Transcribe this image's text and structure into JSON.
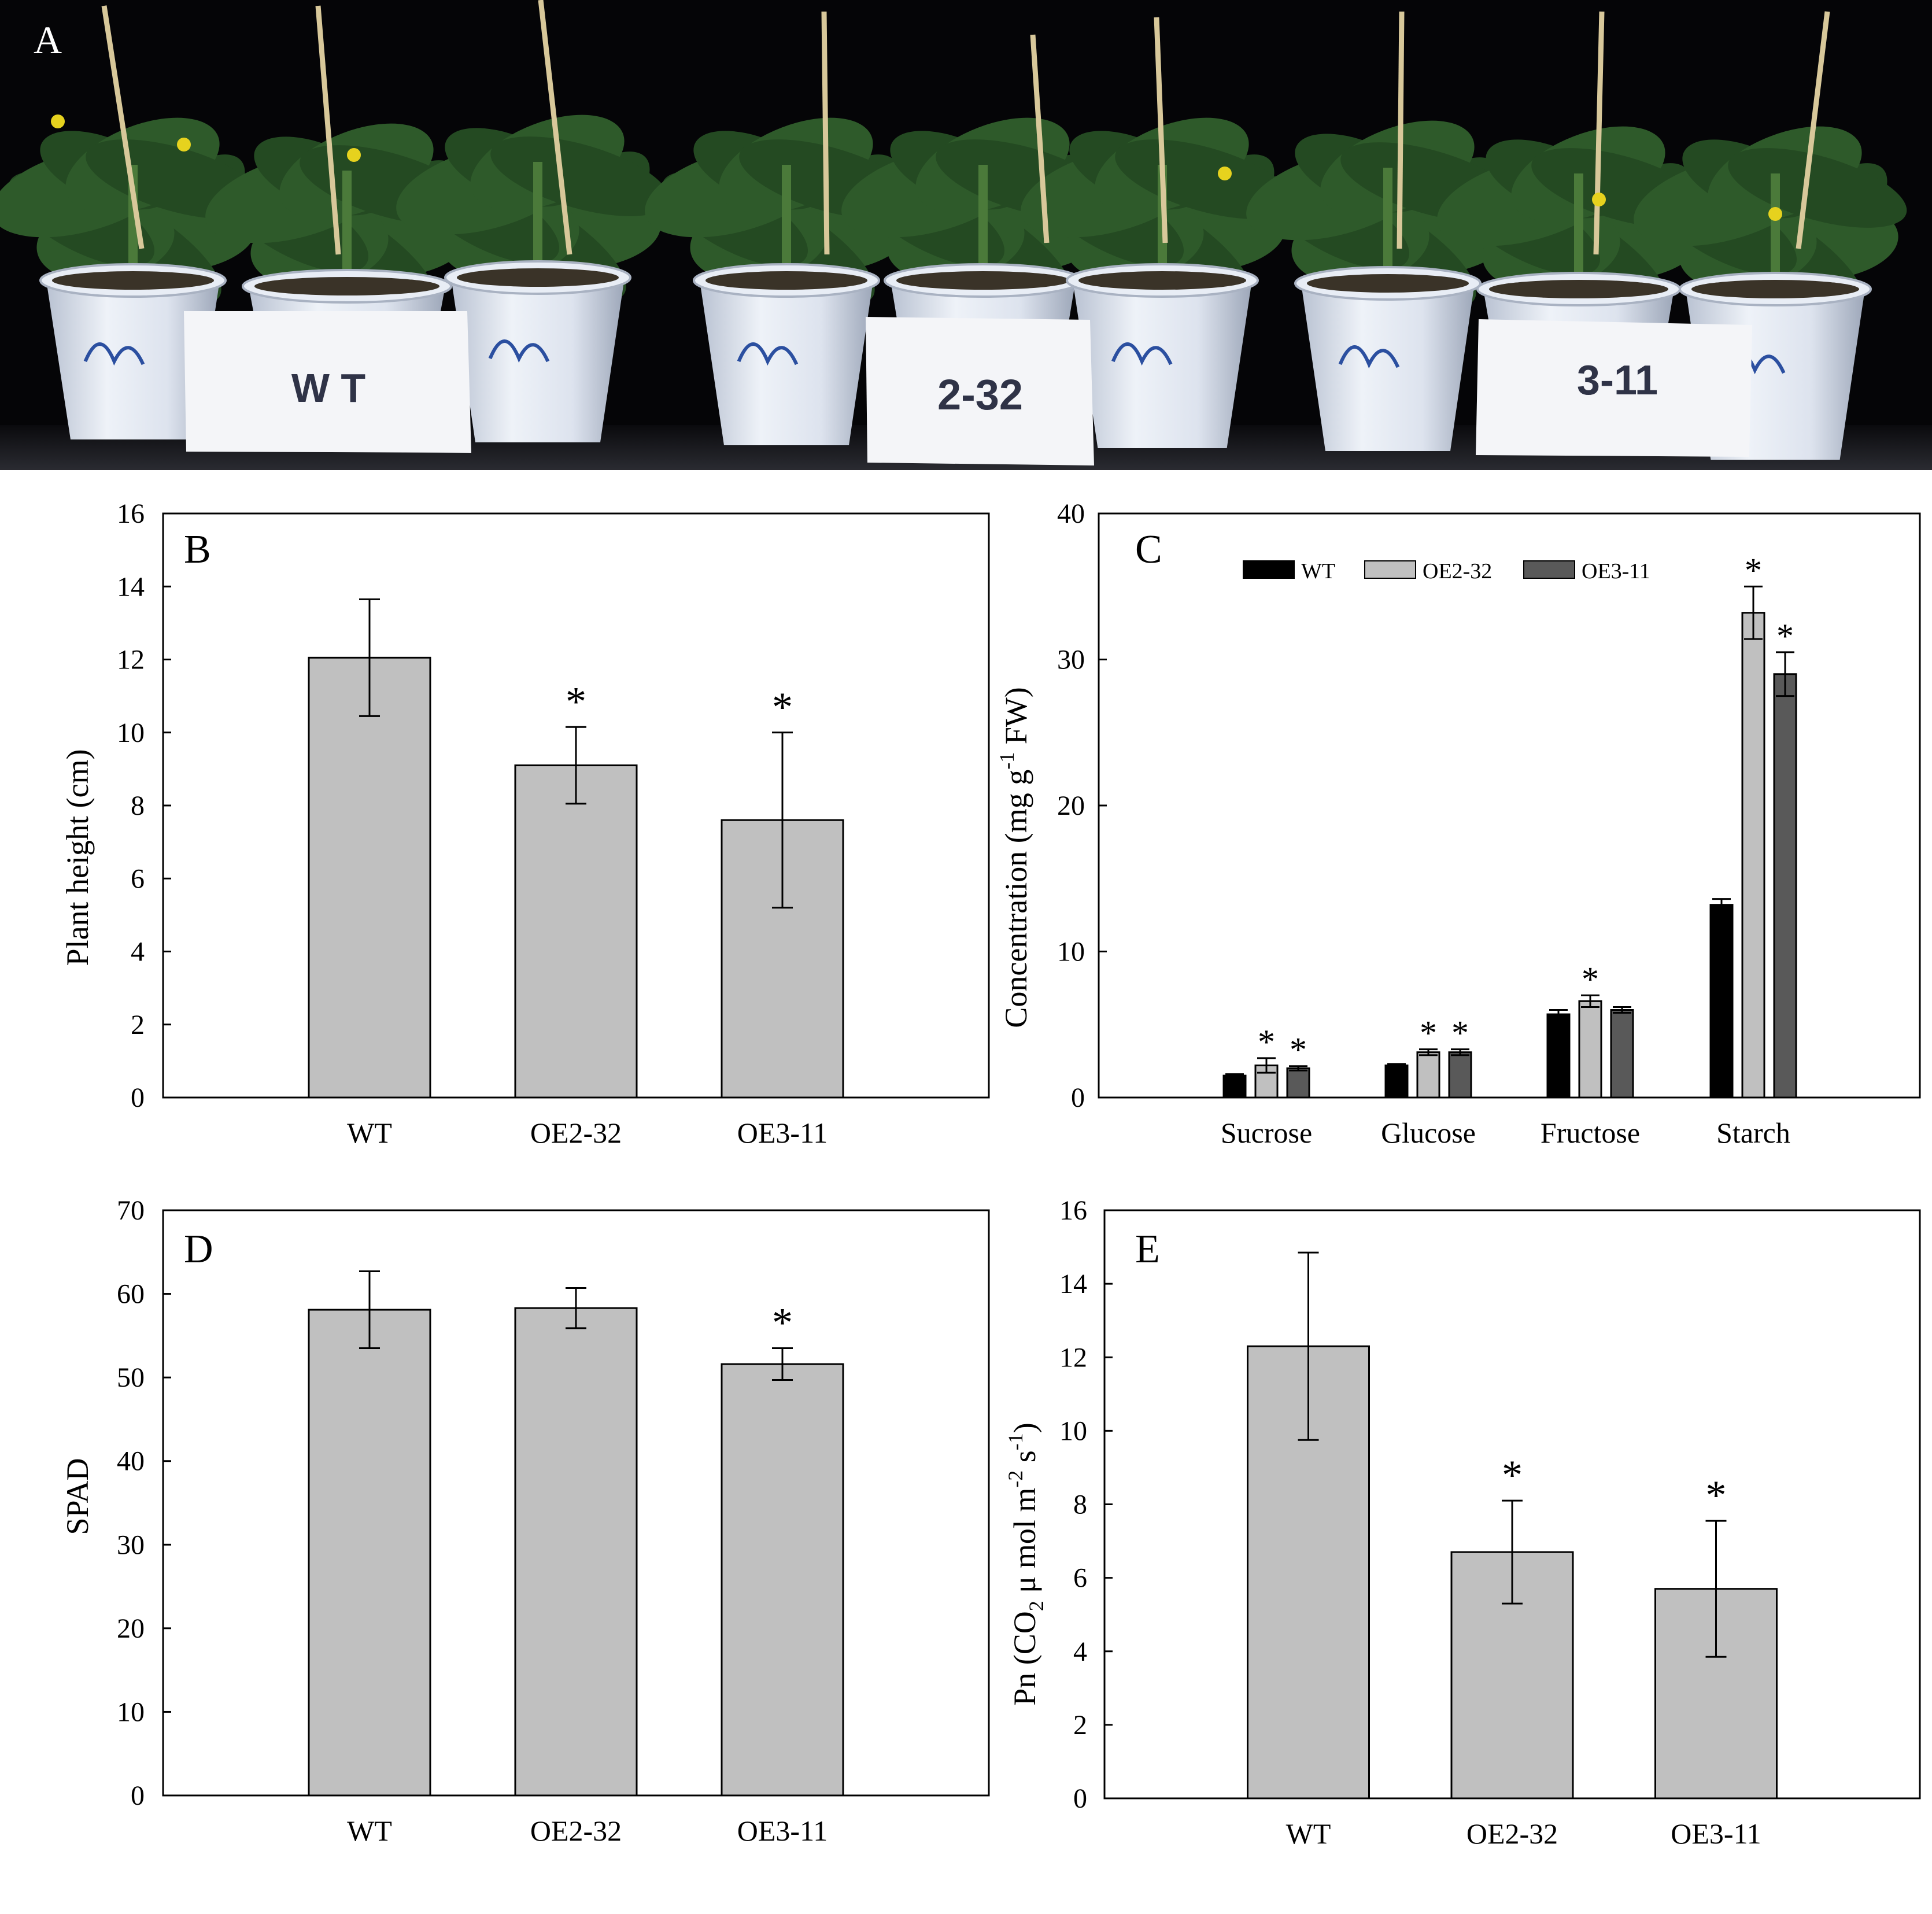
{
  "photo": {
    "panel_letter": "A",
    "groups": [
      {
        "label": "W T",
        "pots": 3
      },
      {
        "label": "2-32",
        "pots": 3
      },
      {
        "label": "3-11",
        "pots": 3
      }
    ],
    "colors": {
      "background": "#050507",
      "pot": "#dfe5ef",
      "card": "#f4f5f8",
      "label_text": "#2f3347",
      "leaf": "#2e5a2a",
      "stake": "#d8c89a",
      "flower": "#e6d21e"
    }
  },
  "colors": {
    "bar_gray": "#c0c0c0",
    "bar_black": "#000000",
    "bar_dark": "#595959",
    "axis": "#000000"
  },
  "chart_data": [
    {
      "panel": "B",
      "type": "bar",
      "categories": [
        "WT",
        "OE2-32",
        "OE3-11"
      ],
      "values": [
        12.05,
        9.1,
        7.6
      ],
      "errors": [
        1.6,
        1.05,
        2.4
      ],
      "significant": [
        false,
        true,
        true
      ],
      "ylabel": "Plant height (cm)",
      "ylim": [
        0,
        16
      ],
      "yticks": [
        "0",
        "2",
        "4",
        "6",
        "8",
        "10",
        "12",
        "14",
        "16"
      ],
      "grid": false
    },
    {
      "panel": "C",
      "type": "bar",
      "categories": [
        "Sucrose",
        "Glucose",
        "Fructose",
        "Starch"
      ],
      "series": [
        {
          "name": "WT",
          "values": [
            1.5,
            2.2,
            5.7,
            13.2
          ],
          "errors": [
            0.1,
            0.1,
            0.3,
            0.4
          ],
          "significant": [
            false,
            false,
            false,
            false
          ],
          "color": "#000000"
        },
        {
          "name": "OE2-32",
          "values": [
            2.2,
            3.1,
            6.6,
            33.2
          ],
          "errors": [
            0.5,
            0.2,
            0.4,
            1.8
          ],
          "significant": [
            true,
            true,
            true,
            true
          ],
          "color": "#c0c0c0"
        },
        {
          "name": "OE3-11",
          "values": [
            2.0,
            3.1,
            6.0,
            29.0
          ],
          "errors": [
            0.15,
            0.2,
            0.2,
            1.5
          ],
          "significant": [
            true,
            true,
            false,
            true
          ],
          "color": "#595959"
        }
      ],
      "ylabel": "Concentration (mg g-1 FW)",
      "ylim": [
        0,
        40
      ],
      "yticks": [
        "0",
        "10",
        "20",
        "30",
        "40"
      ],
      "legend_position": "top",
      "grid": false
    },
    {
      "panel": "D",
      "type": "bar",
      "categories": [
        "WT",
        "OE2-32",
        "OE3-11"
      ],
      "values": [
        58.1,
        58.3,
        51.6
      ],
      "errors": [
        4.6,
        2.4,
        1.9
      ],
      "significant": [
        false,
        false,
        true
      ],
      "ylabel": "SPAD",
      "ylim": [
        0,
        70
      ],
      "yticks": [
        "0",
        "10",
        "20",
        "30",
        "40",
        "50",
        "60",
        "70"
      ],
      "grid": false
    },
    {
      "panel": "E",
      "type": "bar",
      "categories": [
        "WT",
        "OE2-32",
        "OE3-11"
      ],
      "values": [
        12.3,
        6.7,
        5.7
      ],
      "errors": [
        2.55,
        1.4,
        1.85
      ],
      "significant": [
        false,
        true,
        true
      ],
      "ylabel": "Pn (CO2 μ mol  m-2 s-1)",
      "ylim": [
        0,
        16
      ],
      "yticks": [
        "0",
        "2",
        "4",
        "6",
        "8",
        "10",
        "12",
        "14",
        "16"
      ],
      "grid": false
    }
  ]
}
